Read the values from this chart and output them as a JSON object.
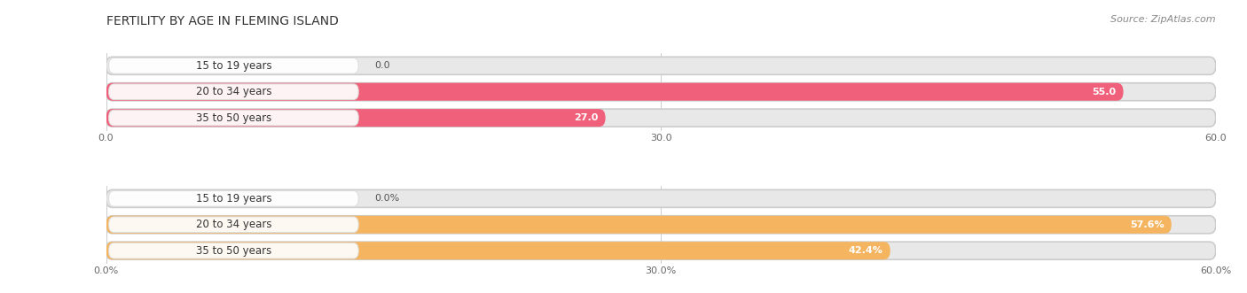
{
  "title": "FERTILITY BY AGE IN FLEMING ISLAND",
  "source": "Source: ZipAtlas.com",
  "top_chart": {
    "categories": [
      "15 to 19 years",
      "20 to 34 years",
      "35 to 50 years"
    ],
    "values": [
      0.0,
      55.0,
      27.0
    ],
    "xlim": [
      0,
      60
    ],
    "xticks": [
      0.0,
      30.0,
      60.0
    ],
    "xtick_labels": [
      "0.0",
      "30.0",
      "60.0"
    ],
    "bar_color_main": "#f0607a",
    "bar_color_light": "#f9c0cc",
    "label_inside_color": "#ffffff",
    "label_outside_color": "#555555",
    "bar_bg_color": "#e8e8e8"
  },
  "bottom_chart": {
    "categories": [
      "15 to 19 years",
      "20 to 34 years",
      "35 to 50 years"
    ],
    "values": [
      0.0,
      57.6,
      42.4
    ],
    "xlim": [
      0,
      60
    ],
    "xticks": [
      0.0,
      30.0,
      60.0
    ],
    "xtick_labels": [
      "0.0%",
      "30.0%",
      "60.0%"
    ],
    "bar_color_main": "#f5b560",
    "bar_color_light": "#f9d4a0",
    "label_inside_color": "#ffffff",
    "label_outside_color": "#555555",
    "bar_bg_color": "#e8e8e8"
  },
  "fig_bg_color": "#ffffff",
  "title_fontsize": 10,
  "label_fontsize": 8,
  "tick_fontsize": 8,
  "category_fontsize": 8.5,
  "source_fontsize": 8
}
